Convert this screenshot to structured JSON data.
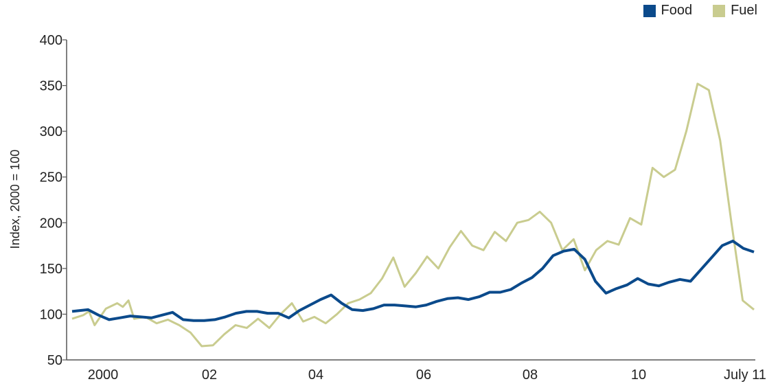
{
  "chart_data": {
    "type": "line",
    "ylabel": "Index, 2000 = 100",
    "ylim": [
      50,
      400
    ],
    "yticks": [
      50,
      100,
      150,
      200,
      250,
      300,
      350,
      400
    ],
    "xlim": [
      1999.6,
      2011.8
    ],
    "xticks": [
      {
        "value": 2000.0,
        "label": "2000"
      },
      {
        "value": 2002.0,
        "label": "02"
      },
      {
        "value": 2004.0,
        "label": "04"
      },
      {
        "value": 2006.0,
        "label": "06"
      },
      {
        "value": 2008.0,
        "label": "08"
      },
      {
        "value": 2010.0,
        "label": "10"
      },
      {
        "value": 2011.5,
        "label": "July 11"
      }
    ],
    "grid": false,
    "legend_position": "top-right",
    "series": [
      {
        "name": "Food",
        "color": "#0b4a8b",
        "points": [
          [
            1999.7,
            103
          ],
          [
            2000.0,
            105
          ],
          [
            2000.2,
            99
          ],
          [
            2000.4,
            94
          ],
          [
            2000.6,
            96
          ],
          [
            2000.8,
            98
          ],
          [
            2001.0,
            97
          ],
          [
            2001.2,
            96
          ],
          [
            2001.4,
            99
          ],
          [
            2001.6,
            102
          ],
          [
            2001.8,
            94
          ],
          [
            2002.0,
            93
          ],
          [
            2002.2,
            93
          ],
          [
            2002.4,
            94
          ],
          [
            2002.6,
            97
          ],
          [
            2002.8,
            101
          ],
          [
            2003.0,
            103
          ],
          [
            2003.2,
            103
          ],
          [
            2003.4,
            101
          ],
          [
            2003.6,
            101
          ],
          [
            2003.8,
            96
          ],
          [
            2004.0,
            104
          ],
          [
            2004.2,
            110
          ],
          [
            2004.4,
            116
          ],
          [
            2004.6,
            121
          ],
          [
            2004.8,
            112
          ],
          [
            2005.0,
            105
          ],
          [
            2005.2,
            104
          ],
          [
            2005.4,
            106
          ],
          [
            2005.6,
            110
          ],
          [
            2005.8,
            110
          ],
          [
            2006.0,
            109
          ],
          [
            2006.2,
            108
          ],
          [
            2006.4,
            110
          ],
          [
            2006.6,
            114
          ],
          [
            2006.8,
            117
          ],
          [
            2007.0,
            118
          ],
          [
            2007.2,
            116
          ],
          [
            2007.4,
            119
          ],
          [
            2007.6,
            124
          ],
          [
            2007.8,
            124
          ],
          [
            2008.0,
            127
          ],
          [
            2008.2,
            134
          ],
          [
            2008.4,
            140
          ],
          [
            2008.6,
            150
          ],
          [
            2008.8,
            164
          ],
          [
            2009.0,
            169
          ],
          [
            2009.2,
            171
          ],
          [
            2009.4,
            160
          ],
          [
            2009.6,
            136
          ],
          [
            2009.8,
            123
          ],
          [
            2010.0,
            128
          ],
          [
            2010.2,
            132
          ],
          [
            2010.4,
            139
          ],
          [
            2010.6,
            133
          ],
          [
            2010.8,
            131
          ],
          [
            2011.0,
            135
          ],
          [
            2011.2,
            138
          ],
          [
            2011.4,
            136
          ],
          [
            2011.6,
            149
          ],
          [
            2011.8,
            162
          ],
          [
            2012.0,
            175
          ],
          [
            2012.2,
            180
          ],
          [
            2012.4,
            172
          ],
          [
            2012.6,
            168
          ]
        ]
      },
      {
        "name": "Fuel",
        "color": "#c9cc8f",
        "points": [
          [
            1999.7,
            95
          ],
          [
            1999.9,
            99
          ],
          [
            2000.0,
            103
          ],
          [
            2000.1,
            88
          ],
          [
            2000.3,
            106
          ],
          [
            2000.5,
            112
          ],
          [
            2000.6,
            108
          ],
          [
            2000.7,
            115
          ],
          [
            2000.8,
            95
          ],
          [
            2001.0,
            97
          ],
          [
            2001.2,
            90
          ],
          [
            2001.4,
            94
          ],
          [
            2001.6,
            88
          ],
          [
            2001.8,
            80
          ],
          [
            2002.0,
            65
          ],
          [
            2002.2,
            66
          ],
          [
            2002.4,
            78
          ],
          [
            2002.6,
            88
          ],
          [
            2002.8,
            85
          ],
          [
            2003.0,
            95
          ],
          [
            2003.2,
            85
          ],
          [
            2003.4,
            100
          ],
          [
            2003.6,
            112
          ],
          [
            2003.8,
            92
          ],
          [
            2004.0,
            97
          ],
          [
            2004.2,
            90
          ],
          [
            2004.4,
            100
          ],
          [
            2004.6,
            112
          ],
          [
            2004.8,
            116
          ],
          [
            2005.0,
            123
          ],
          [
            2005.2,
            139
          ],
          [
            2005.4,
            162
          ],
          [
            2005.6,
            130
          ],
          [
            2005.8,
            145
          ],
          [
            2006.0,
            163
          ],
          [
            2006.2,
            150
          ],
          [
            2006.4,
            173
          ],
          [
            2006.6,
            191
          ],
          [
            2006.8,
            175
          ],
          [
            2007.0,
            170
          ],
          [
            2007.2,
            190
          ],
          [
            2007.4,
            180
          ],
          [
            2007.6,
            200
          ],
          [
            2007.8,
            203
          ],
          [
            2008.0,
            212
          ],
          [
            2008.2,
            200
          ],
          [
            2008.4,
            170
          ],
          [
            2008.6,
            182
          ],
          [
            2008.8,
            148
          ],
          [
            2009.0,
            170
          ],
          [
            2009.2,
            180
          ],
          [
            2009.4,
            176
          ],
          [
            2009.6,
            205
          ],
          [
            2009.8,
            198
          ],
          [
            2010.0,
            260
          ],
          [
            2010.2,
            250
          ],
          [
            2010.4,
            258
          ],
          [
            2010.6,
            300
          ],
          [
            2010.8,
            352
          ],
          [
            2011.0,
            345
          ],
          [
            2011.2,
            290
          ],
          [
            2011.4,
            200
          ],
          [
            2011.6,
            115
          ],
          [
            2011.8,
            105
          ]
        ]
      }
    ]
  }
}
